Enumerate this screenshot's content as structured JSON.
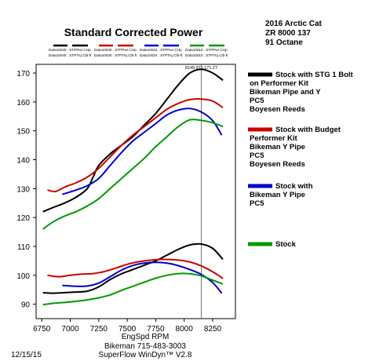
{
  "chart_data": {
    "type": "line",
    "title": "Standard Corrected Power",
    "subtitle_lines": [
      "2016 Arctic Cat",
      "ZR 8000 137",
      "91 Octane"
    ],
    "xlabel": "EngSpd  RPM",
    "footer_lines": [
      "Bikeman 715-483-3003",
      "SuperFlow WinDyn™ V2.8"
    ],
    "date": "12/15/15",
    "cursor_readout": "8149.97 | 171.27",
    "cursor_x": 8150,
    "xlim": [
      6700,
      8450
    ],
    "ylim": [
      85,
      173
    ],
    "xticks": [
      6750,
      7000,
      7250,
      7500,
      7750,
      8000,
      8250
    ],
    "yticks": [
      90,
      100,
      110,
      120,
      130,
      140,
      150,
      160,
      170
    ],
    "grid": false,
    "legend_top": [
      {
        "file": "Data10045",
        "hp": "STPPwr CHp",
        "tq": "STPTrq Clb-ft",
        "color": "#000000"
      },
      {
        "file": "Data10030",
        "hp": "STPPwr CHp",
        "tq": "STPTrq Clb-ft",
        "color": "#cc0000"
      },
      {
        "file": "Data10024",
        "hp": "STPPwr CHp",
        "tq": "STPTrq Clb-ft",
        "color": "#0000cc"
      },
      {
        "file": "Data10010",
        "hp": "STPPwr CHp",
        "tq": "STPTrq Clb-ft",
        "color": "#009900"
      }
    ],
    "series": [
      {
        "name": "Stock with STG 1 Bolt on Performer Kit Bikeman Pipe and Y PC5 Boyesen Reeds",
        "label_lines": [
          "Stock with STG 1 Bolt",
          "on Performer Kit",
          "Bikeman Pipe and Y",
          "PC5",
          "Boyesen Reeds"
        ],
        "color": "#000000",
        "power": [
          [
            6760,
            122
          ],
          [
            6850,
            123.5
          ],
          [
            6950,
            125
          ],
          [
            7050,
            127
          ],
          [
            7150,
            130
          ],
          [
            7200,
            134
          ],
          [
            7250,
            138
          ],
          [
            7350,
            142
          ],
          [
            7450,
            145
          ],
          [
            7550,
            148
          ],
          [
            7650,
            152
          ],
          [
            7750,
            156
          ],
          [
            7850,
            161
          ],
          [
            7950,
            166
          ],
          [
            8050,
            170
          ],
          [
            8150,
            171.3
          ],
          [
            8250,
            170
          ],
          [
            8340,
            167.5
          ]
        ],
        "torque": [
          [
            6760,
            94
          ],
          [
            6850,
            93.8
          ],
          [
            6950,
            94
          ],
          [
            7050,
            94.2
          ],
          [
            7150,
            94.5
          ],
          [
            7250,
            96
          ],
          [
            7350,
            98.5
          ],
          [
            7450,
            100.5
          ],
          [
            7550,
            102
          ],
          [
            7650,
            103.5
          ],
          [
            7750,
            105
          ],
          [
            7850,
            107
          ],
          [
            7950,
            109
          ],
          [
            8050,
            110.5
          ],
          [
            8150,
            110.8
          ],
          [
            8250,
            109.3
          ],
          [
            8340,
            105.5
          ]
        ]
      },
      {
        "name": "Stock with Budget Performer Kit Bikeman Y Pipe PC5 Boyesen Reeds",
        "label_lines": [
          "Stock with Budget",
          "Performer Kit",
          "Bikeman Y Pipe",
          "PC5",
          "Boyesen Reeds"
        ],
        "color": "#cc0000",
        "power": [
          [
            6800,
            129.5
          ],
          [
            6870,
            129
          ],
          [
            6950,
            130.5
          ],
          [
            7050,
            132
          ],
          [
            7150,
            134
          ],
          [
            7250,
            137
          ],
          [
            7350,
            141
          ],
          [
            7450,
            145
          ],
          [
            7550,
            148.5
          ],
          [
            7650,
            151.5
          ],
          [
            7750,
            154.5
          ],
          [
            7850,
            157.5
          ],
          [
            7950,
            159.5
          ],
          [
            8050,
            160.8
          ],
          [
            8150,
            161
          ],
          [
            8250,
            160.3
          ],
          [
            8340,
            158
          ]
        ],
        "torque": [
          [
            6800,
            100
          ],
          [
            6900,
            99.5
          ],
          [
            7000,
            100
          ],
          [
            7100,
            100.4
          ],
          [
            7200,
            100.6
          ],
          [
            7300,
            101.3
          ],
          [
            7400,
            102.5
          ],
          [
            7500,
            103.8
          ],
          [
            7600,
            104.7
          ],
          [
            7700,
            105.2
          ],
          [
            7800,
            105.5
          ],
          [
            7900,
            105.4
          ],
          [
            8000,
            105
          ],
          [
            8100,
            104
          ],
          [
            8200,
            102.3
          ],
          [
            8300,
            100
          ],
          [
            8340,
            98.8
          ]
        ]
      },
      {
        "name": "Stock with Bikeman Y Pipe PC5",
        "label_lines": [
          "Stock with",
          "Bikeman Y Pipe",
          "PC5"
        ],
        "color": "#0000cc",
        "power": [
          [
            6930,
            128
          ],
          [
            7050,
            129.5
          ],
          [
            7150,
            131
          ],
          [
            7250,
            133.5
          ],
          [
            7350,
            138
          ],
          [
            7450,
            142.5
          ],
          [
            7550,
            146.5
          ],
          [
            7650,
            149.5
          ],
          [
            7750,
            152.5
          ],
          [
            7850,
            155.5
          ],
          [
            7950,
            157.2
          ],
          [
            8050,
            157.7
          ],
          [
            8150,
            156.5
          ],
          [
            8250,
            153.5
          ],
          [
            8330,
            148.5
          ]
        ],
        "torque": [
          [
            6930,
            96.5
          ],
          [
            7050,
            96.2
          ],
          [
            7150,
            96.3
          ],
          [
            7250,
            97.3
          ],
          [
            7350,
            99.5
          ],
          [
            7450,
            101.8
          ],
          [
            7550,
            103.4
          ],
          [
            7650,
            104.2
          ],
          [
            7750,
            104.5
          ],
          [
            7850,
            104.2
          ],
          [
            7950,
            103.3
          ],
          [
            8050,
            102
          ],
          [
            8150,
            100.3
          ],
          [
            8250,
            97.5
          ],
          [
            8330,
            93.8
          ]
        ]
      },
      {
        "name": "Stock",
        "label_lines": [
          "Stock"
        ],
        "color": "#009900",
        "power": [
          [
            6760,
            116
          ],
          [
            6850,
            118.5
          ],
          [
            6950,
            120.5
          ],
          [
            7050,
            122
          ],
          [
            7150,
            124
          ],
          [
            7250,
            126.5
          ],
          [
            7350,
            130
          ],
          [
            7450,
            133.5
          ],
          [
            7550,
            137
          ],
          [
            7650,
            140.5
          ],
          [
            7750,
            144.5
          ],
          [
            7850,
            148
          ],
          [
            7950,
            151.5
          ],
          [
            8050,
            153.8
          ],
          [
            8150,
            153.6
          ],
          [
            8250,
            152.8
          ],
          [
            8340,
            151.5
          ]
        ],
        "torque": [
          [
            6760,
            89.8
          ],
          [
            6850,
            90.3
          ],
          [
            6950,
            90.6
          ],
          [
            7050,
            91
          ],
          [
            7150,
            91.5
          ],
          [
            7250,
            92.2
          ],
          [
            7350,
            93.2
          ],
          [
            7450,
            94.8
          ],
          [
            7550,
            96.2
          ],
          [
            7650,
            97.6
          ],
          [
            7750,
            99
          ],
          [
            7850,
            100
          ],
          [
            7950,
            100.6
          ],
          [
            8050,
            100.5
          ],
          [
            8150,
            99.8
          ],
          [
            8250,
            98.3
          ],
          [
            8340,
            97
          ]
        ]
      }
    ]
  }
}
